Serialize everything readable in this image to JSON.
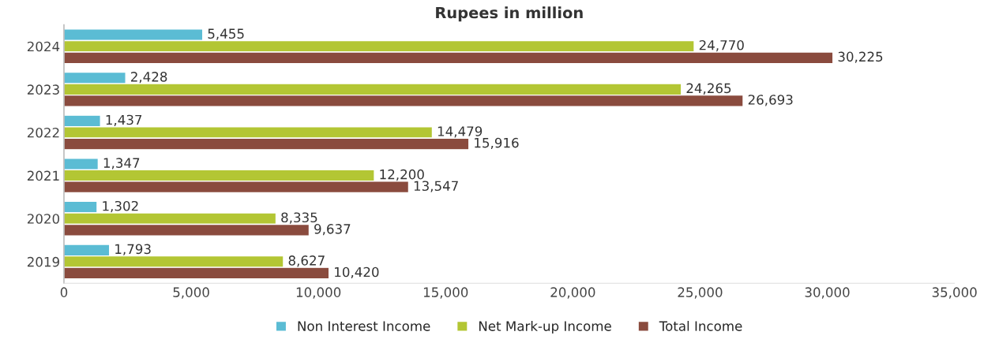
{
  "chart_data": {
    "type": "bar",
    "orientation": "horizontal",
    "title": "Rupees in million",
    "categories": [
      "2024",
      "2023",
      "2022",
      "2021",
      "2020",
      "2019"
    ],
    "series": [
      {
        "name": "Non Interest Income",
        "color": "#5bbcd4",
        "values": [
          5455,
          2428,
          1437,
          1347,
          1302,
          1793
        ],
        "value_labels": [
          "5,455",
          "2,428",
          "1,437",
          "1,347",
          "1,302",
          "1,793"
        ]
      },
      {
        "name": "Net Mark-up Income",
        "color": "#b3c634",
        "values": [
          24770,
          24265,
          14479,
          12200,
          8335,
          8627
        ],
        "value_labels": [
          "24,770",
          "24,265",
          "14,479",
          "12,200",
          "8,335",
          "8,627"
        ]
      },
      {
        "name": "Total Income",
        "color": "#8a4b3e",
        "values": [
          30225,
          26693,
          15916,
          13547,
          9637,
          10420
        ],
        "value_labels": [
          "30,225",
          "26,693",
          "15,916",
          "13,547",
          "9,637",
          "10,420"
        ]
      }
    ],
    "xlim": [
      0,
      35000
    ],
    "xticks": [
      {
        "value": 0,
        "label": "0"
      },
      {
        "value": 5000,
        "label": "5,000"
      },
      {
        "value": 10000,
        "label": "10,000"
      },
      {
        "value": 15000,
        "label": "15,000"
      },
      {
        "value": 20000,
        "label": "20,000"
      },
      {
        "value": 25000,
        "label": "25,000"
      },
      {
        "value": 30000,
        "label": "30,000"
      },
      {
        "value": 35000,
        "label": "35,000"
      }
    ],
    "legend": "bottom",
    "grid": false
  }
}
